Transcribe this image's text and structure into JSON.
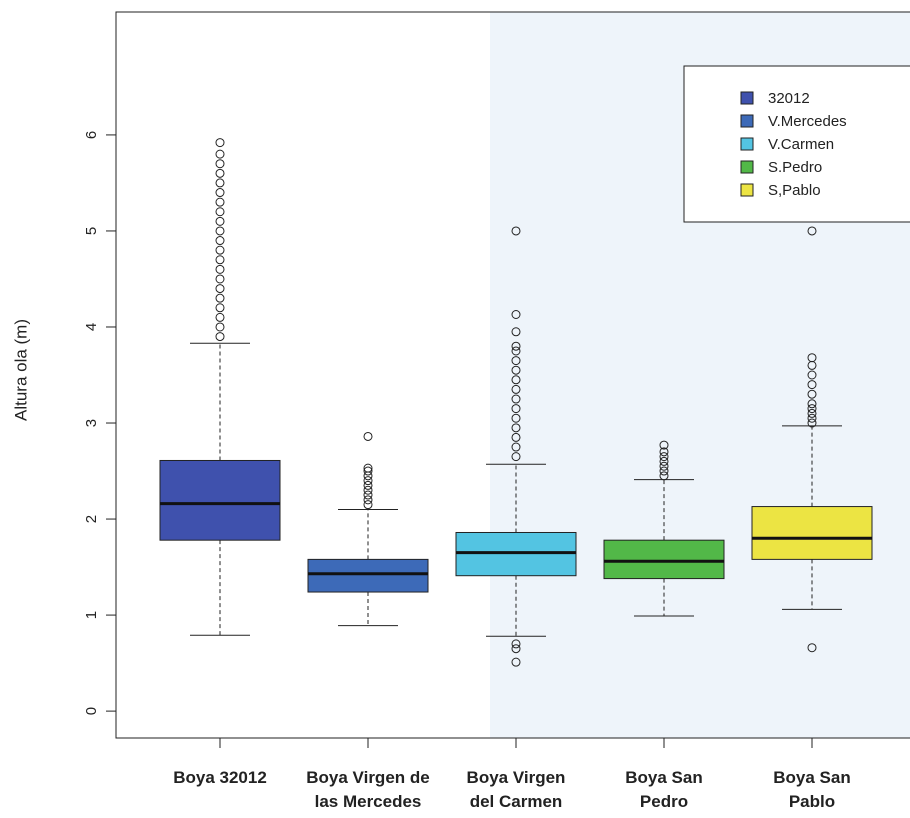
{
  "chart_data": {
    "type": "box",
    "y_label": "Altura ola (m)",
    "categories": [
      "Boya 32012",
      "Boya Virgen de\nlas Mercedes",
      "Boya Virgen\ndel Carmen",
      "Boya San\nPedro",
      "Boya San\nPablo"
    ],
    "series": [
      {
        "name": "32012",
        "color": "#3f51ad",
        "min": 0.79,
        "q1": 1.78,
        "median": 2.16,
        "q3": 2.61,
        "max": 3.83,
        "outliers": [
          3.9,
          4.0,
          4.1,
          4.2,
          4.3,
          4.4,
          4.5,
          4.6,
          4.7,
          4.8,
          4.9,
          5.0,
          5.1,
          5.2,
          5.3,
          5.4,
          5.5,
          5.6,
          5.7,
          5.8,
          5.92
        ]
      },
      {
        "name": "V.Mercedes",
        "color": "#3d6ab8",
        "min": 0.89,
        "q1": 1.24,
        "median": 1.43,
        "q3": 1.58,
        "max": 2.1,
        "outliers": [
          2.15,
          2.2,
          2.25,
          2.3,
          2.35,
          2.4,
          2.45,
          2.5,
          2.53,
          2.86
        ]
      },
      {
        "name": "V.Carmen",
        "color": "#53c4e2",
        "min": 0.78,
        "q1": 1.41,
        "median": 1.65,
        "q3": 1.86,
        "max": 2.57,
        "outliers": [
          0.51,
          0.65,
          0.7,
          2.65,
          2.75,
          2.85,
          2.95,
          3.05,
          3.15,
          3.25,
          3.35,
          3.45,
          3.55,
          3.65,
          3.75,
          3.8,
          3.95,
          4.13,
          5.0
        ]
      },
      {
        "name": "S.Pedro",
        "color": "#52b848",
        "min": 0.99,
        "q1": 1.38,
        "median": 1.56,
        "q3": 1.78,
        "max": 2.41,
        "outliers": [
          2.45,
          2.5,
          2.55,
          2.6,
          2.65,
          2.7,
          2.77
        ]
      },
      {
        "name": "S,Pablo",
        "color": "#ece443",
        "min": 1.06,
        "q1": 1.58,
        "median": 1.8,
        "q3": 2.13,
        "max": 2.97,
        "outliers": [
          0.66,
          3.0,
          3.05,
          3.1,
          3.15,
          3.2,
          3.3,
          3.4,
          3.5,
          3.6,
          3.68,
          5.0
        ]
      }
    ],
    "ylim": [
      -0.28,
      7.28
    ],
    "yticks": [
      0,
      1,
      2,
      3,
      4,
      5,
      6
    ],
    "legend": "top-right"
  }
}
